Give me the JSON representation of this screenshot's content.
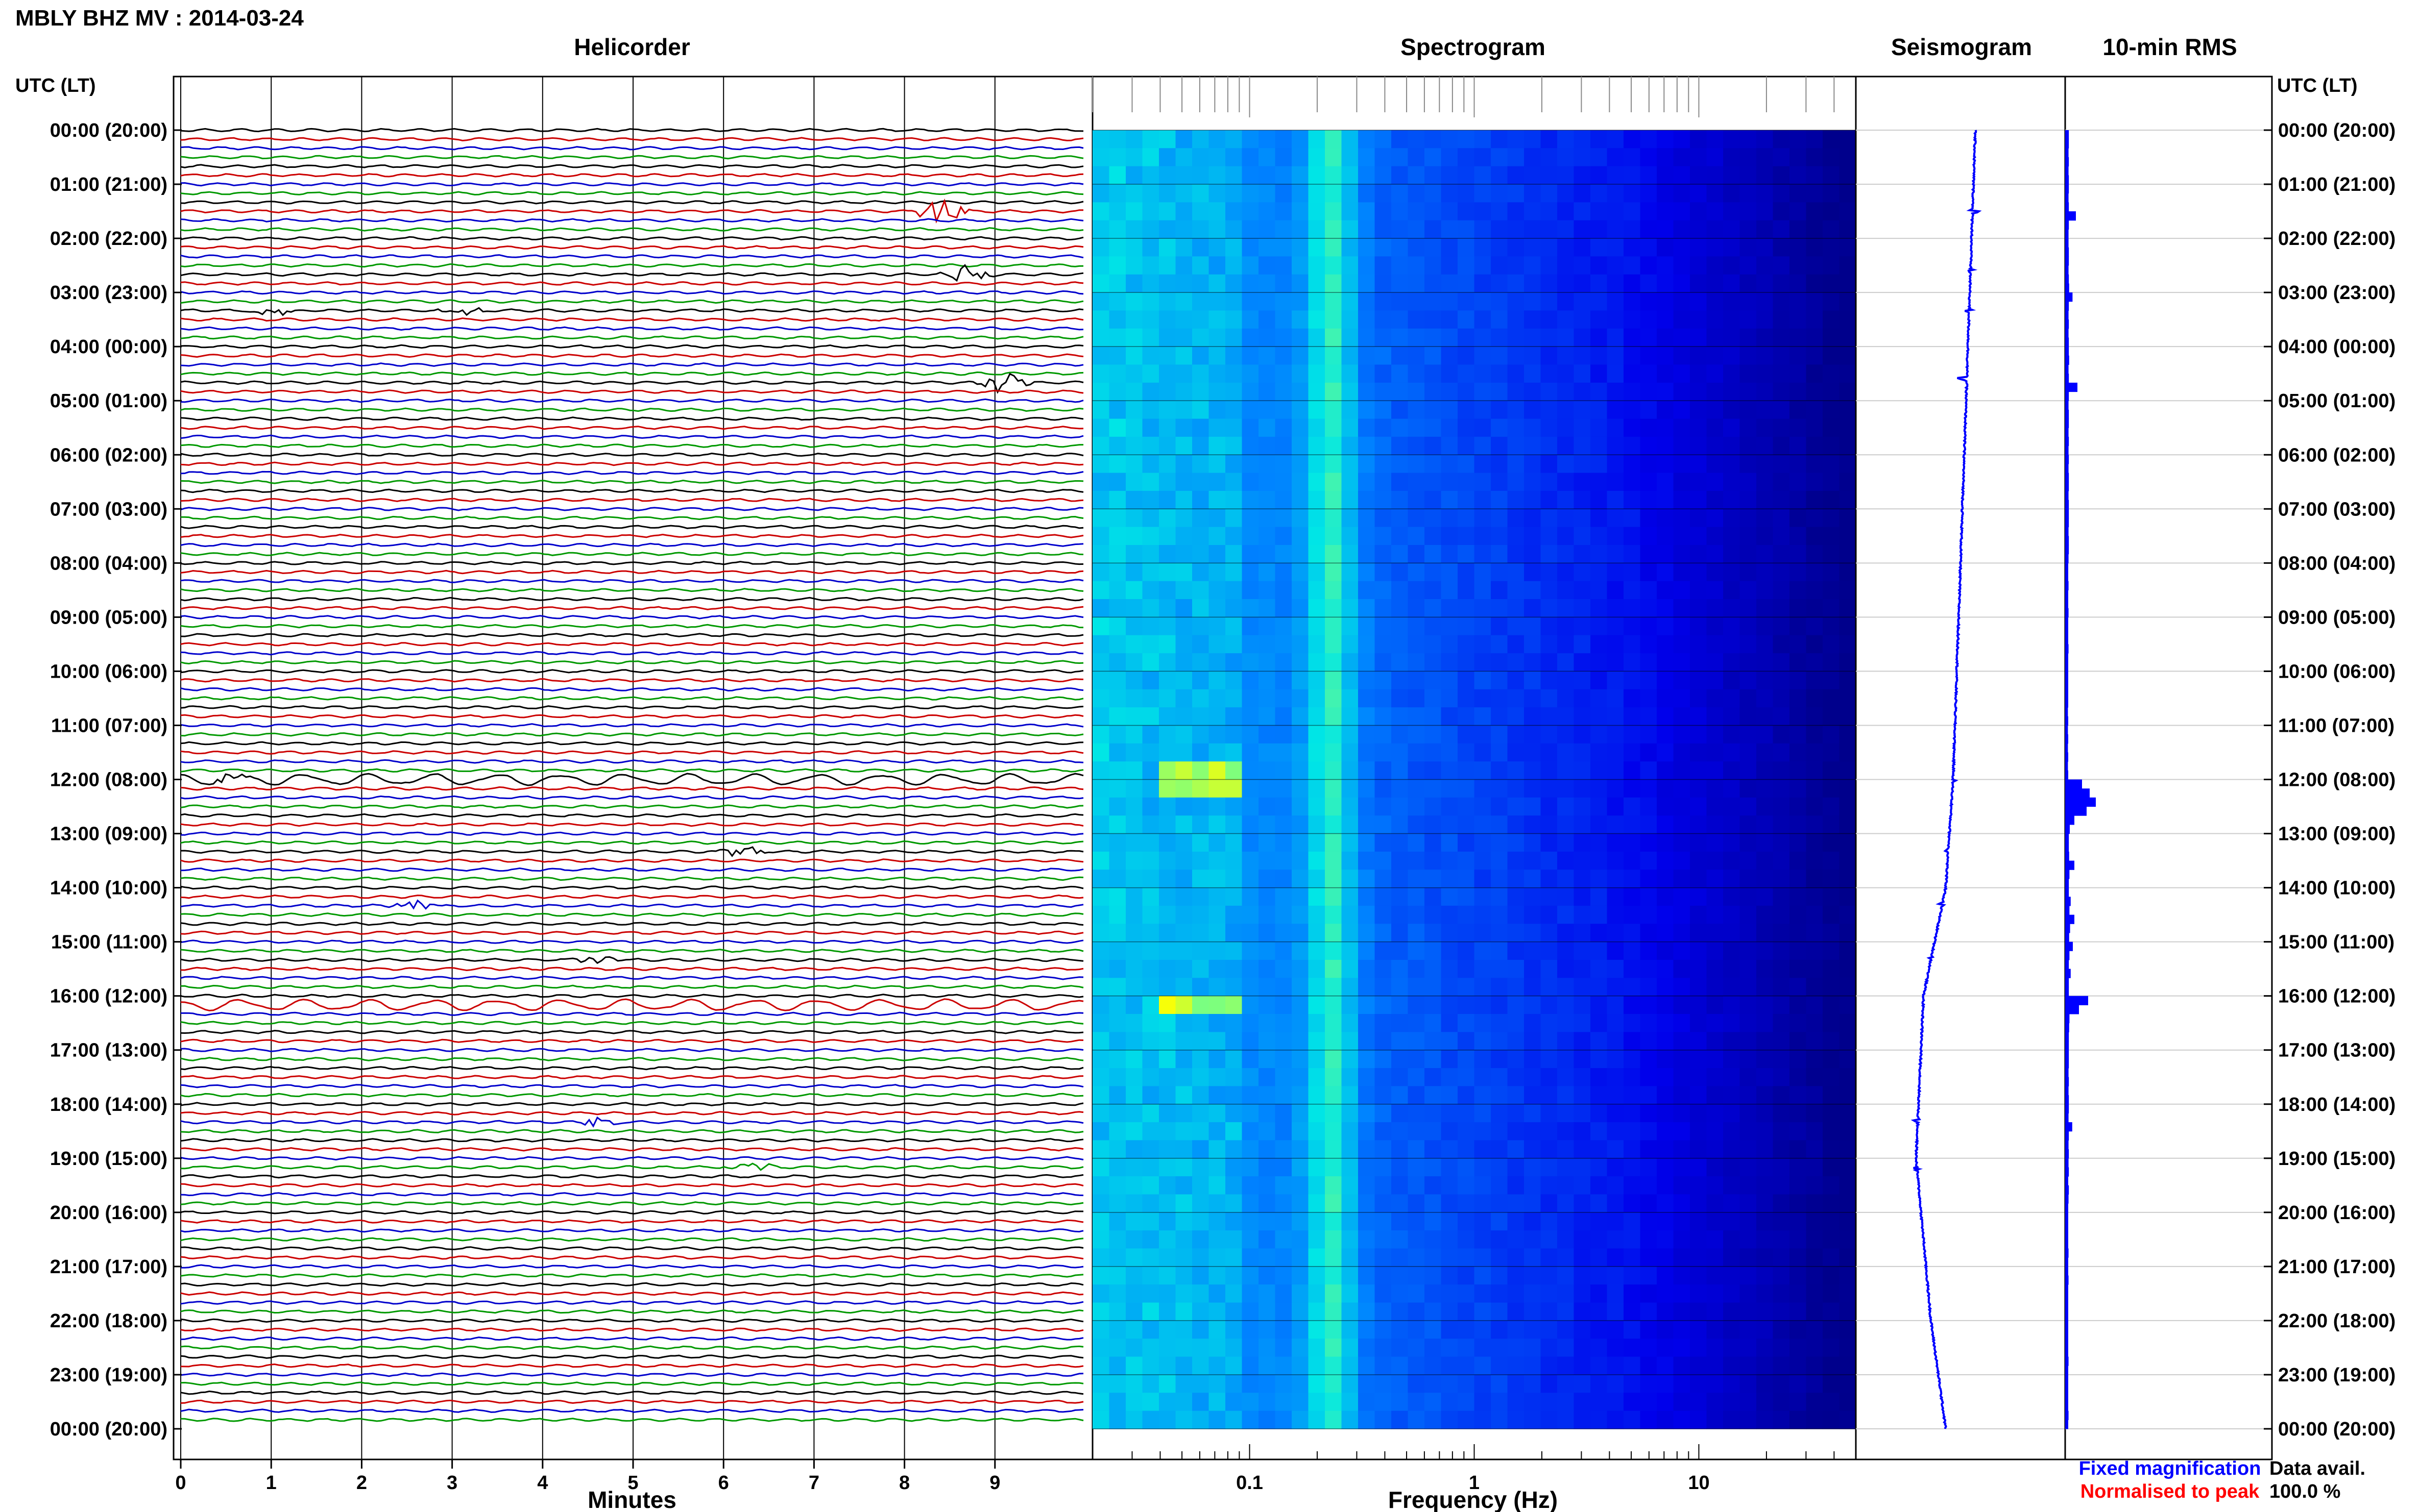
{
  "title": "MBLY BHZ MV : 2014-03-24",
  "panels": {
    "helicorder": "Helicorder",
    "spectrogram": "Spectrogram",
    "seismogram": "Seismogram",
    "rms": "10-min RMS"
  },
  "axes": {
    "left_time_label": "UTC (LT)",
    "right_time_label": "UTC (LT)",
    "helicorder_xlabel": "Minutes",
    "spectrogram_xlabel": "Frequency (Hz)"
  },
  "legend": {
    "fixed": "Fixed magnification",
    "normalised": "Normalised to peak",
    "fixed_color": "#0000ff",
    "normalised_color": "#ff0000"
  },
  "availability": {
    "label": "Data avail.",
    "value": "100.0 %"
  },
  "colors": {
    "trace_cycle": [
      "#000000",
      "#cc0000",
      "#0000cc",
      "#009900"
    ],
    "seismogram": "#0000ff",
    "rms_bar": "#0000ff"
  },
  "chart_data": [
    {
      "type": "line",
      "name": "helicorder",
      "xlabel": "Minutes",
      "x_ticks": [
        0,
        1,
        2,
        3,
        4,
        5,
        6,
        7,
        8,
        9
      ],
      "xlim": [
        0,
        10
      ],
      "y_tick_labels": [
        "00:00 (20:00)",
        "01:00 (21:00)",
        "02:00 (22:00)",
        "03:00 (23:00)",
        "04:00 (00:00)",
        "05:00 (01:00)",
        "06:00 (02:00)",
        "07:00 (03:00)",
        "08:00 (04:00)",
        "09:00 (05:00)",
        "10:00 (06:00)",
        "11:00 (07:00)",
        "12:00 (08:00)",
        "13:00 (09:00)",
        "14:00 (10:00)",
        "15:00 (11:00)",
        "16:00 (12:00)",
        "17:00 (13:00)",
        "18:00 (14:00)",
        "19:00 (15:00)",
        "20:00 (16:00)",
        "21:00 (17:00)",
        "22:00 (18:00)",
        "23:00 (19:00)",
        "00:00 (20:00)"
      ],
      "events": [
        {
          "hour": 1.5,
          "minute": 8.4,
          "amplitude": 3.0
        },
        {
          "hour": 2.6,
          "minute": 8.7,
          "amplitude": 2.4
        },
        {
          "hour": 3.35,
          "minute": 1.0,
          "amplitude": 1.6
        },
        {
          "hour": 3.35,
          "minute": 3.1,
          "amplitude": 1.2
        },
        {
          "hour": 4.6,
          "minute": 9.1,
          "amplitude": 2.8
        },
        {
          "hour": 12.0,
          "minute": 0.5,
          "amplitude": 1.0
        },
        {
          "hour": 13.3,
          "minute": 6.2,
          "amplitude": 1.2
        },
        {
          "hour": 14.3,
          "minute": 2.6,
          "amplitude": 1.3
        },
        {
          "hour": 15.3,
          "minute": 4.6,
          "amplitude": 1.0
        },
        {
          "hour": 18.3,
          "minute": 4.6,
          "amplitude": 1.3
        },
        {
          "hour": 19.2,
          "minute": 6.3,
          "amplitude": 1.4
        }
      ]
    },
    {
      "type": "heatmap",
      "name": "spectrogram",
      "xlabel": "Frequency (Hz)",
      "x_scale": "log",
      "xlim": [
        0.02,
        50
      ],
      "x_ticks": [
        0.1,
        1,
        10
      ],
      "x_tick_labels": [
        "0.1",
        "1",
        "10"
      ],
      "peak_band_hz": [
        0.18,
        0.3
      ],
      "low_freq_bursts": [
        {
          "hour": 12.0,
          "freq_hz": [
            0.04,
            0.1
          ]
        },
        {
          "hour": 16.2,
          "freq_hz": [
            0.04,
            0.1
          ]
        }
      ]
    },
    {
      "type": "line",
      "name": "seismogram",
      "x_trend": [
        {
          "hour": 0,
          "value": 0.6
        },
        {
          "hour": 4,
          "value": 0.55
        },
        {
          "hour": 8,
          "value": 0.5
        },
        {
          "hour": 12,
          "value": 0.45
        },
        {
          "hour": 14,
          "value": 0.4
        },
        {
          "hour": 16,
          "value": 0.25
        },
        {
          "hour": 19,
          "value": 0.2
        },
        {
          "hour": 22,
          "value": 0.3
        },
        {
          "hour": 24,
          "value": 0.4
        }
      ]
    },
    {
      "type": "bar",
      "name": "10-min RMS",
      "values": [
        0.12,
        0.12,
        0.11,
        0.12,
        0.11,
        0.12,
        0.12,
        0.11,
        0.12,
        0.35,
        0.12,
        0.11,
        0.11,
        0.12,
        0.12,
        0.11,
        0.12,
        0.13,
        0.24,
        0.12,
        0.11,
        0.12,
        0.11,
        0.12,
        0.12,
        0.13,
        0.11,
        0.12,
        0.4,
        0.12,
        0.11,
        0.12,
        0.12,
        0.11,
        0.12,
        0.11,
        0.12,
        0.11,
        0.12,
        0.12,
        0.11,
        0.12,
        0.12,
        0.12,
        0.11,
        0.12,
        0.12,
        0.11,
        0.1,
        0.1,
        0.11,
        0.1,
        0.1,
        0.11,
        0.1,
        0.1,
        0.1,
        0.11,
        0.1,
        0.1,
        0.1,
        0.1,
        0.1,
        0.1,
        0.09,
        0.1,
        0.09,
        0.1,
        0.09,
        0.1,
        0.09,
        0.1,
        0.55,
        0.8,
        1.0,
        0.7,
        0.3,
        0.15,
        0.12,
        0.12,
        0.13,
        0.3,
        0.14,
        0.12,
        0.12,
        0.18,
        0.14,
        0.3,
        0.16,
        0.13,
        0.25,
        0.14,
        0.12,
        0.18,
        0.12,
        0.12,
        0.75,
        0.45,
        0.14,
        0.13,
        0.12,
        0.12,
        0.12,
        0.12,
        0.11,
        0.12,
        0.11,
        0.12,
        0.12,
        0.11,
        0.23,
        0.12,
        0.11,
        0.12,
        0.11,
        0.12,
        0.1,
        0.12,
        0.11,
        0.1,
        0.1,
        0.1,
        0.1,
        0.1,
        0.11,
        0.1,
        0.1,
        0.11,
        0.1,
        0.1,
        0.1,
        0.1,
        0.1,
        0.1,
        0.1,
        0.1,
        0.11,
        0.1,
        0.1,
        0.1,
        0.1,
        0.1,
        0.11,
        0.1
      ]
    }
  ]
}
